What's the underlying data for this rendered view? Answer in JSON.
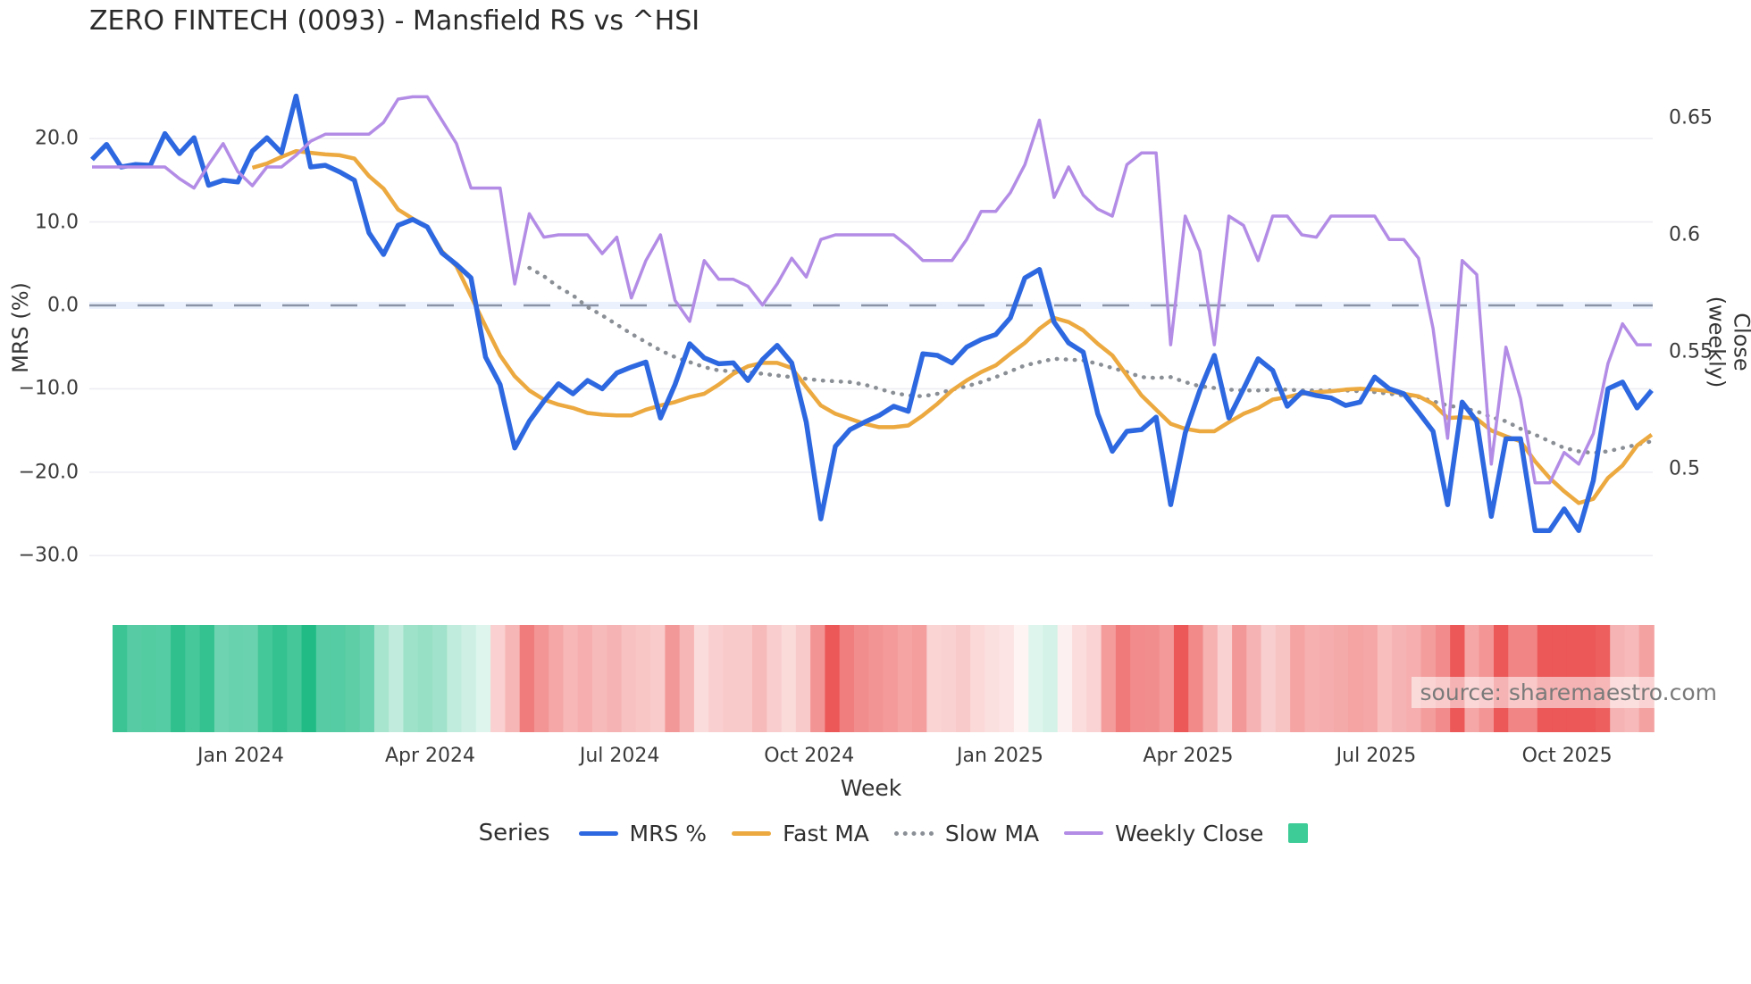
{
  "title": "ZERO FINTECH (0093) - Mansfield RS vs ^HSI",
  "source_note": "source: sharemaestro.com",
  "axes": {
    "left_title": "MRS (%)",
    "right_title": "Close (weekly)",
    "x_title": "Week",
    "left_ticks": [
      {
        "label": "20.0",
        "value": 20
      },
      {
        "label": "10.0",
        "value": 10
      },
      {
        "label": "0.0",
        "value": 0
      },
      {
        "label": "−10.0",
        "value": -10
      },
      {
        "label": "−20.0",
        "value": -20
      },
      {
        "label": "−30.0",
        "value": -30
      }
    ],
    "right_ticks": [
      {
        "label": "0.65",
        "value": 0.65
      },
      {
        "label": "0.6",
        "value": 0.6
      },
      {
        "label": "0.55",
        "value": 0.55
      },
      {
        "label": "0.5",
        "value": 0.5
      }
    ],
    "x_ticks": [
      {
        "label": "Jan 2024",
        "week": 10.2
      },
      {
        "label": "Apr 2024",
        "week": 23.2
      },
      {
        "label": "Jul 2024",
        "week": 36.2
      },
      {
        "label": "Oct 2024",
        "week": 49.2
      },
      {
        "label": "Jan 2025",
        "week": 62.3
      },
      {
        "label": "Apr 2025",
        "week": 75.2
      },
      {
        "label": "Jul 2025",
        "week": 88.1
      },
      {
        "label": "Oct 2025",
        "week": 101.2
      }
    ]
  },
  "legend": {
    "title": "Series",
    "items": [
      {
        "label": "MRS %",
        "style": "solid",
        "color": "#2e68e0"
      },
      {
        "label": "Fast MA",
        "style": "solid",
        "color": "#eca93f"
      },
      {
        "label": "Slow MA",
        "style": "dotted",
        "color": "#8a8f96"
      },
      {
        "label": "Weekly Close",
        "style": "solid-thin",
        "color": "#b38ce6"
      },
      {
        "label": "",
        "style": "square",
        "color": "#3dcb97"
      }
    ]
  },
  "colors": {
    "mrs": "#2e68e0",
    "fast_ma": "#eca93f",
    "slow_ma": "#8a8f96",
    "weekly_close": "#b38ce6",
    "grid": "#edeef3",
    "zero_line": "#8a94a6",
    "zero_band": "rgba(130,170,240,0.16)",
    "heat_positive": "#21bc86",
    "heat_negative": "#ec5757"
  },
  "chart_data": {
    "type": "line",
    "title": "ZERO FINTECH (0093) - Mansfield RS vs ^HSI",
    "xlabel": "Week",
    "ylabel_left": "MRS (%)",
    "ylabel_right": "Close (weekly)",
    "x_unit": "week_index",
    "n_weeks": 108,
    "x_range_weeks": [
      0,
      107
    ],
    "ylim_left": [
      -33,
      28
    ],
    "ylim_right": [
      0.478,
      0.672
    ],
    "grid": true,
    "zero_reference_line": 0,
    "series": [
      {
        "name": "MRS %",
        "axis": "left",
        "style": "solid",
        "color": "#2e68e0",
        "values": [
          17.5,
          19.3,
          16.6,
          16.9,
          16.8,
          20.6,
          18.2,
          20.1,
          14.4,
          15.0,
          14.8,
          18.5,
          20.1,
          18.3,
          25.1,
          16.6,
          16.8,
          16.0,
          15.0,
          8.7,
          6.1,
          9.6,
          10.3,
          9.4,
          6.3,
          4.9,
          3.3,
          -6.2,
          -9.5,
          -17.1,
          -13.9,
          -11.5,
          -9.4,
          -10.6,
          -9.0,
          -10.0,
          -8.1,
          -7.4,
          -6.8,
          -13.5,
          -9.5,
          -4.6,
          -6.3,
          -7.0,
          -6.9,
          -9.0,
          -6.5,
          -4.8,
          -6.9,
          -14.0,
          -25.6,
          -16.9,
          -14.9,
          -14.0,
          -13.2,
          -12.1,
          -12.7,
          -5.8,
          -6.0,
          -6.9,
          -5.0,
          -4.1,
          -3.5,
          -1.5,
          3.3,
          4.3,
          -2.0,
          -4.5,
          -5.6,
          -13.0,
          -17.5,
          -15.1,
          -14.9,
          -13.4,
          -23.9,
          -15.3,
          -10.2,
          -6.0,
          -13.5,
          -10.0,
          -6.4,
          -7.8,
          -12.1,
          -10.4,
          -10.8,
          -11.1,
          -12.0,
          -11.6,
          -8.6,
          -10.0,
          -10.6,
          -12.8,
          -15.1,
          -23.9,
          -11.6,
          -13.9,
          -25.3,
          -16.0,
          -16.0,
          -27.0,
          -27.0,
          -24.4,
          -27.0,
          -21.0,
          -10.0,
          -9.2,
          -12.3,
          -10.2
        ]
      },
      {
        "name": "Fast MA",
        "axis": "left",
        "style": "solid",
        "color": "#eca93f",
        "values": [
          null,
          null,
          null,
          null,
          null,
          null,
          null,
          null,
          null,
          null,
          null,
          16.5,
          17.0,
          17.8,
          18.5,
          18.3,
          18.1,
          18.0,
          17.6,
          15.5,
          14.0,
          11.5,
          10.4,
          9.4,
          6.5,
          4.7,
          1.1,
          -2.5,
          -6.0,
          -8.5,
          -10.2,
          -11.3,
          -11.9,
          -12.3,
          -12.9,
          -13.1,
          -13.2,
          -13.2,
          -12.5,
          -12.0,
          -11.6,
          -11.0,
          -10.6,
          -9.5,
          -8.2,
          -7.3,
          -6.9,
          -6.9,
          -7.5,
          -9.8,
          -12.0,
          -13.0,
          -13.6,
          -14.2,
          -14.6,
          -14.6,
          -14.4,
          -13.2,
          -11.8,
          -10.2,
          -9.0,
          -8.0,
          -7.2,
          -5.8,
          -4.5,
          -2.8,
          -1.5,
          -2.0,
          -3.0,
          -4.6,
          -6.0,
          -8.4,
          -10.8,
          -12.5,
          -14.2,
          -14.8,
          -15.1,
          -15.1,
          -14.0,
          -13.0,
          -12.3,
          -11.3,
          -11.0,
          -10.6,
          -10.4,
          -10.3,
          -10.1,
          -10.0,
          -10.1,
          -10.3,
          -10.6,
          -10.9,
          -11.8,
          -13.5,
          -13.4,
          -13.6,
          -15.0,
          -15.7,
          -16.3,
          -18.7,
          -20.7,
          -22.3,
          -23.7,
          -23.2,
          -20.7,
          -19.2,
          -16.8,
          -15.5
        ]
      },
      {
        "name": "Slow MA",
        "axis": "left",
        "style": "dotted",
        "color": "#8a8f96",
        "values": [
          null,
          null,
          null,
          null,
          null,
          null,
          null,
          null,
          null,
          null,
          null,
          null,
          null,
          null,
          null,
          null,
          null,
          null,
          null,
          null,
          null,
          null,
          null,
          null,
          null,
          null,
          null,
          null,
          null,
          null,
          4.5,
          3.5,
          2.2,
          1.2,
          -0.2,
          -1.2,
          -2.3,
          -3.4,
          -4.4,
          -5.4,
          -6.2,
          -6.8,
          -7.4,
          -7.8,
          -7.9,
          -8.0,
          -8.2,
          -8.4,
          -8.6,
          -8.8,
          -9.0,
          -9.1,
          -9.2,
          -9.5,
          -10.0,
          -10.5,
          -10.8,
          -10.9,
          -10.6,
          -10.1,
          -9.7,
          -9.2,
          -8.6,
          -7.9,
          -7.2,
          -6.8,
          -6.4,
          -6.5,
          -6.6,
          -7.0,
          -7.5,
          -8.0,
          -8.6,
          -8.7,
          -8.6,
          -9.2,
          -9.7,
          -9.9,
          -10.1,
          -10.2,
          -10.2,
          -10.1,
          -10.1,
          -10.2,
          -10.2,
          -10.2,
          -10.2,
          -10.3,
          -10.4,
          -10.6,
          -10.8,
          -11.0,
          -11.5,
          -12.0,
          -12.3,
          -12.7,
          -13.4,
          -13.9,
          -14.8,
          -15.5,
          -16.3,
          -17.1,
          -17.5,
          -17.7,
          -17.5,
          -17.1,
          -16.7,
          -16.3
        ]
      },
      {
        "name": "Weekly Close",
        "axis": "right",
        "style": "solid",
        "color": "#b38ce6",
        "values": [
          0.629,
          0.629,
          0.629,
          0.629,
          0.629,
          0.629,
          0.624,
          0.62,
          0.63,
          0.639,
          0.627,
          0.621,
          0.629,
          0.629,
          0.634,
          0.64,
          0.643,
          0.643,
          0.643,
          0.643,
          0.648,
          0.658,
          0.659,
          0.659,
          0.649,
          0.639,
          0.62,
          0.62,
          0.62,
          0.579,
          0.609,
          0.599,
          0.6,
          0.6,
          0.6,
          0.592,
          0.599,
          0.573,
          0.589,
          0.6,
          0.572,
          0.563,
          0.589,
          0.581,
          0.581,
          0.578,
          0.57,
          0.579,
          0.59,
          0.582,
          0.598,
          0.6,
          0.6,
          0.6,
          0.6,
          0.6,
          0.595,
          0.589,
          0.589,
          0.589,
          0.598,
          0.61,
          0.61,
          0.618,
          0.63,
          0.649,
          0.616,
          0.629,
          0.617,
          0.611,
          0.608,
          0.63,
          0.635,
          0.635,
          0.553,
          0.608,
          0.593,
          0.553,
          0.608,
          0.604,
          0.589,
          0.608,
          0.608,
          0.6,
          0.599,
          0.608,
          0.608,
          0.608,
          0.608,
          0.598,
          0.598,
          0.59,
          0.56,
          0.513,
          0.589,
          0.583,
          0.502,
          0.552,
          0.53,
          0.494,
          0.494,
          0.507,
          0.502,
          0.515,
          0.545,
          0.562,
          0.553,
          0.553
        ]
      }
    ],
    "heatmap_strip": {
      "derived_from": "MRS % weekly values",
      "positive_color": "#21bc86",
      "negative_color": "#ec5757",
      "scale_abs_max": 22
    },
    "legend_position": "bottom"
  }
}
